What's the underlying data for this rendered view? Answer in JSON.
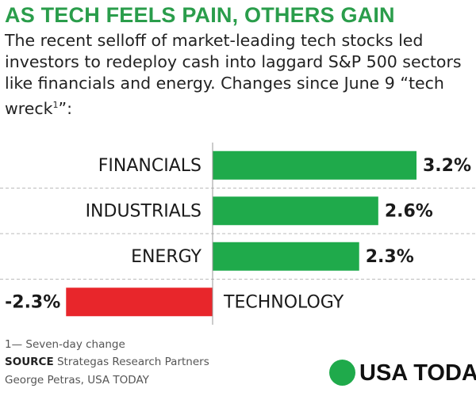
{
  "chart_data": {
    "type": "bar",
    "orientation": "horizontal",
    "title": "AS TECH FEELS PAIN, OTHERS GAIN",
    "subtitle": "The recent selloff of market-leading tech stocks led investors to redeploy cash into laggard S&P 500 sectors like financials and energy. Changes since June 9 “tech wreck",
    "subtitle_note_mark": "1",
    "subtitle_end": "”:",
    "categories": [
      "FINANCIALS",
      "INDUSTRIALS",
      "ENERGY",
      "TECHNOLOGY"
    ],
    "values": [
      3.2,
      2.6,
      2.3,
      -2.3
    ],
    "value_labels": [
      "3.2%",
      "2.6%",
      "2.3%",
      "-2.3%"
    ],
    "positive_color": "#1faa4b",
    "negative_color": "#e8262b",
    "footnote": "1— Seven-day change",
    "source_label": "SOURCE",
    "source": "Strategas Research Partners",
    "credit": "George Petras, USA TODAY",
    "logo": "USA TODAY"
  }
}
